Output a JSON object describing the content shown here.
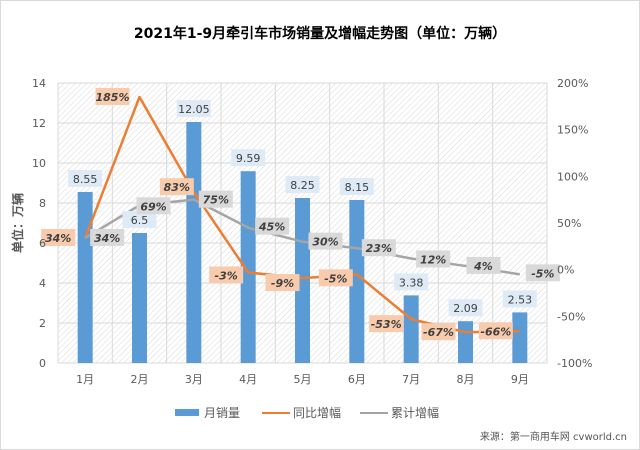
{
  "chart_data": {
    "type": "bar+line",
    "title": "2021年1-9月牵引车市场销量及增幅走势图（单位：万辆）",
    "ylabel": "单位：万辆",
    "categories": [
      "1月",
      "2月",
      "3月",
      "4月",
      "5月",
      "6月",
      "7月",
      "8月",
      "9月"
    ],
    "ylim": [
      0,
      14
    ],
    "yticks": [
      "0",
      "2",
      "4",
      "6",
      "8",
      "10",
      "12",
      "14"
    ],
    "y2lim": [
      -100,
      200
    ],
    "y2ticks": [
      "-100%",
      "-50%",
      "0%",
      "50%",
      "100%",
      "150%",
      "200%"
    ],
    "grid": true,
    "legend_position": "bottom",
    "series": [
      {
        "name": "月销量",
        "type": "bar",
        "axis": "left",
        "color": "#5b9bd5",
        "values": [
          8.55,
          6.5,
          12.05,
          9.59,
          8.25,
          8.15,
          3.38,
          2.09,
          2.53
        ],
        "labels": [
          "8.55",
          "6.5",
          "12.05",
          "9.59",
          "8.25",
          "8.15",
          "3.38",
          "2.09",
          "2.53"
        ]
      },
      {
        "name": "同比增幅",
        "type": "line",
        "axis": "right",
        "color": "#ed7d31",
        "values": [
          34,
          185,
          83,
          -3,
          -9,
          -5,
          -53,
          -67,
          -66
        ],
        "labels": [
          "34%",
          "185%",
          "83%",
          "-3%",
          "-9%",
          "-5%",
          "-53%",
          "-67%",
          "-66%"
        ]
      },
      {
        "name": "累计增幅",
        "type": "line",
        "axis": "right",
        "color": "#a5a5a5",
        "values": [
          34,
          69,
          75,
          45,
          30,
          23,
          12,
          4,
          -5
        ],
        "labels": [
          "34%",
          "69%",
          "75%",
          "45%",
          "30%",
          "23%",
          "12%",
          "4%",
          "-5%"
        ]
      }
    ]
  },
  "watermark": "来源：第一商用车网 cvworld.cn"
}
